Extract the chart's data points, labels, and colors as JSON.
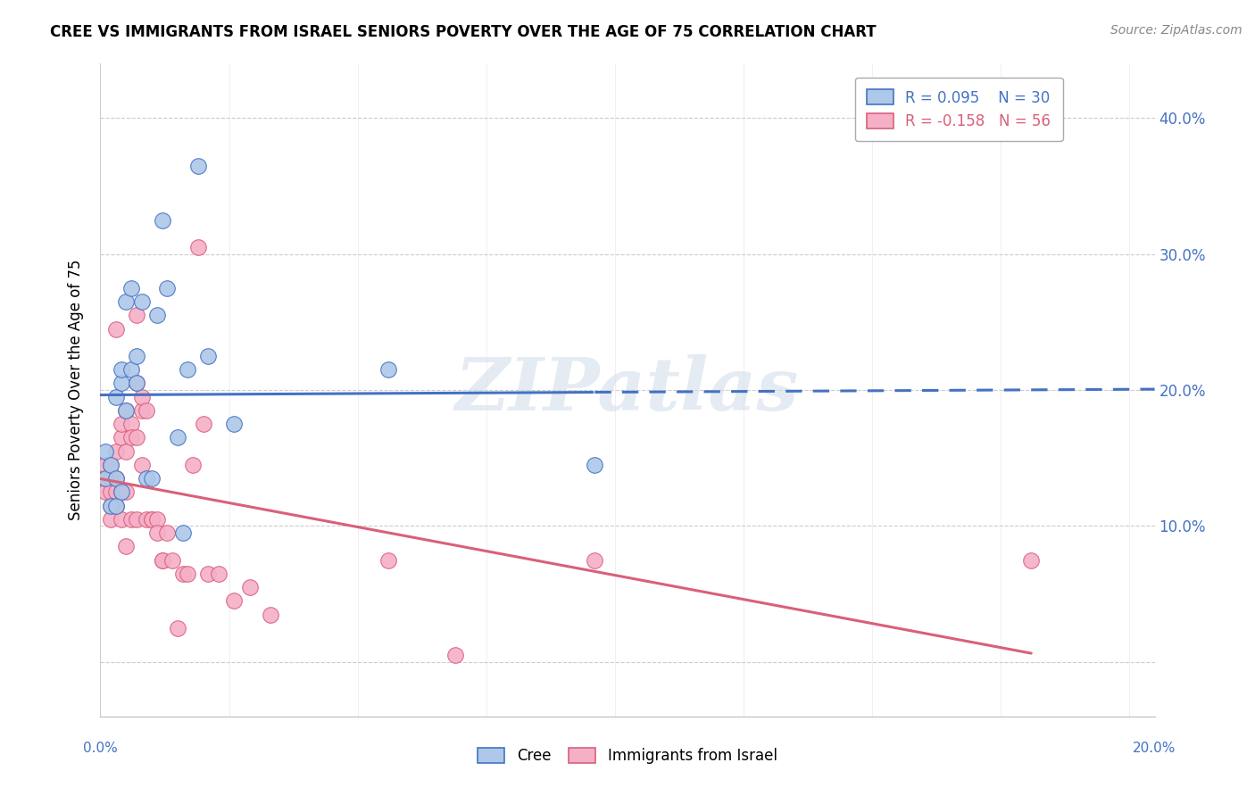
{
  "title": "CREE VS IMMIGRANTS FROM ISRAEL SENIORS POVERTY OVER THE AGE OF 75 CORRELATION CHART",
  "source": "Source: ZipAtlas.com",
  "ylabel": "Seniors Poverty Over the Age of 75",
  "ytick_vals": [
    0.0,
    0.1,
    0.2,
    0.3,
    0.4
  ],
  "ytick_labels": [
    "",
    "10.0%",
    "20.0%",
    "30.0%",
    "40.0%"
  ],
  "xlim": [
    0.0,
    0.205
  ],
  "ylim": [
    -0.04,
    0.44
  ],
  "legend_blue_r": "R = 0.095",
  "legend_blue_n": "N = 30",
  "legend_pink_r": "R = -0.158",
  "legend_pink_n": "N = 56",
  "cree_color": "#adc8e8",
  "israel_color": "#f5b0c8",
  "trendline_blue": "#4472c4",
  "trendline_pink": "#d9607a",
  "watermark": "ZIPatlas",
  "cree_points_x": [
    0.001,
    0.001,
    0.002,
    0.002,
    0.003,
    0.003,
    0.003,
    0.004,
    0.004,
    0.004,
    0.005,
    0.005,
    0.006,
    0.006,
    0.007,
    0.007,
    0.008,
    0.009,
    0.01,
    0.011,
    0.012,
    0.013,
    0.015,
    0.016,
    0.017,
    0.019,
    0.021,
    0.026,
    0.056,
    0.096
  ],
  "cree_points_y": [
    0.135,
    0.155,
    0.115,
    0.145,
    0.115,
    0.135,
    0.195,
    0.205,
    0.215,
    0.125,
    0.185,
    0.265,
    0.275,
    0.215,
    0.225,
    0.205,
    0.265,
    0.135,
    0.135,
    0.255,
    0.325,
    0.275,
    0.165,
    0.095,
    0.215,
    0.365,
    0.225,
    0.175,
    0.215,
    0.145
  ],
  "israel_points_x": [
    0.001,
    0.001,
    0.001,
    0.002,
    0.002,
    0.002,
    0.002,
    0.002,
    0.003,
    0.003,
    0.003,
    0.003,
    0.003,
    0.004,
    0.004,
    0.004,
    0.004,
    0.005,
    0.005,
    0.005,
    0.005,
    0.006,
    0.006,
    0.006,
    0.007,
    0.007,
    0.007,
    0.007,
    0.008,
    0.008,
    0.008,
    0.009,
    0.009,
    0.01,
    0.01,
    0.011,
    0.011,
    0.012,
    0.012,
    0.013,
    0.014,
    0.015,
    0.016,
    0.017,
    0.018,
    0.019,
    0.02,
    0.021,
    0.023,
    0.026,
    0.029,
    0.033,
    0.056,
    0.069,
    0.096,
    0.181
  ],
  "israel_points_y": [
    0.125,
    0.135,
    0.145,
    0.115,
    0.135,
    0.125,
    0.145,
    0.105,
    0.135,
    0.115,
    0.125,
    0.245,
    0.155,
    0.165,
    0.105,
    0.125,
    0.175,
    0.185,
    0.155,
    0.125,
    0.085,
    0.175,
    0.165,
    0.105,
    0.205,
    0.165,
    0.105,
    0.255,
    0.185,
    0.145,
    0.195,
    0.105,
    0.185,
    0.105,
    0.105,
    0.105,
    0.095,
    0.075,
    0.075,
    0.095,
    0.075,
    0.025,
    0.065,
    0.065,
    0.145,
    0.305,
    0.175,
    0.065,
    0.065,
    0.045,
    0.055,
    0.035,
    0.075,
    0.005,
    0.075,
    0.075
  ]
}
